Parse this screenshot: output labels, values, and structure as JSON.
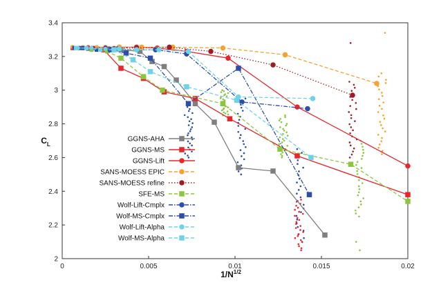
{
  "chart_data": {
    "type": "line",
    "xlabel": "1/N",
    "xlabel_sup": "1/2",
    "ylabel": "C",
    "ylabel_sub": "L",
    "xlim": [
      0,
      0.02
    ],
    "ylim": [
      2,
      3.4
    ],
    "xticks": [
      0,
      0.005,
      0.01,
      0.015,
      0.02
    ],
    "xtick_labels": [
      "0",
      "0.005",
      "0.01",
      "0.015",
      "0.02"
    ],
    "yticks": [
      2,
      2.2,
      2.4,
      2.6,
      2.8,
      3,
      3.2,
      3.4
    ],
    "ytick_labels": [
      "2",
      "2.2",
      "2.4",
      "2.6",
      "2.8",
      "3",
      "3.2",
      "3.4"
    ],
    "grid": false,
    "legend_position": "left",
    "series": [
      {
        "name": "GGNS-AHA",
        "color": "#7f7f7f",
        "marker": "square",
        "dash": "solid",
        "filled_marker": true,
        "x": [
          0.00097,
          0.0015,
          0.002,
          0.0026,
          0.0034,
          0.0045,
          0.0052,
          0.0059,
          0.0066,
          0.0077,
          0.0088,
          0.0102,
          0.0122,
          0.0152
        ],
        "y": [
          3.25,
          3.245,
          3.245,
          3.245,
          3.24,
          3.23,
          3.17,
          3.14,
          3.06,
          2.92,
          2.81,
          2.54,
          2.52,
          2.14
        ]
      },
      {
        "name": "GGNS-MS",
        "color": "#e8252a",
        "marker": "square",
        "dash": "solid",
        "filled_marker": true,
        "x": [
          0.0006,
          0.0012,
          0.0018,
          0.0024,
          0.0034,
          0.0047,
          0.0059,
          0.0077,
          0.0097,
          0.0136,
          0.02
        ],
        "y": [
          3.25,
          3.25,
          3.25,
          3.24,
          3.13,
          3.07,
          2.99,
          2.95,
          2.83,
          2.61,
          2.38
        ]
      },
      {
        "name": "GGNS-Lift",
        "color": "#e8252a",
        "marker": "circle",
        "dash": "solid",
        "filled_marker": true,
        "x": [
          0.0006,
          0.0015,
          0.0025,
          0.0033,
          0.0043,
          0.0055,
          0.0072,
          0.0096,
          0.0136,
          0.02
        ],
        "y": [
          3.255,
          3.255,
          3.255,
          3.255,
          3.255,
          3.25,
          3.23,
          3.19,
          2.9,
          2.55
        ]
      },
      {
        "name": "SANS-MOESS EPIC",
        "color": "#f7a12f",
        "marker": "circle",
        "dash": "dashed",
        "filled_marker": true,
        "x": [
          0.0006,
          0.0012,
          0.002,
          0.0033,
          0.0046,
          0.0064,
          0.0093,
          0.0129,
          0.0182
        ],
        "y": [
          3.255,
          3.255,
          3.255,
          3.255,
          3.255,
          3.255,
          3.25,
          3.21,
          3.04
        ]
      },
      {
        "name": "SANS-MOESS refine",
        "color": "#a01c24",
        "marker": "circle",
        "dash": "dotted",
        "filled_marker": true,
        "x": [
          0.001,
          0.0018,
          0.003,
          0.0043,
          0.0062,
          0.0086,
          0.0122,
          0.0168
        ],
        "y": [
          3.25,
          3.25,
          3.25,
          3.25,
          3.255,
          3.23,
          3.15,
          2.97
        ]
      },
      {
        "name": "SFE-MS",
        "color": "#8cc63f",
        "marker": "square",
        "dash": "dashed",
        "filled_marker": true,
        "x": [
          0.001,
          0.0017,
          0.0026,
          0.0034,
          0.0047,
          0.0058,
          0.0093,
          0.0126,
          0.0167,
          0.02
        ],
        "y": [
          3.25,
          3.24,
          3.23,
          3.19,
          3.08,
          3.0,
          2.92,
          2.65,
          2.56,
          2.34
        ]
      },
      {
        "name": "Wolf-Lift-Cmplx",
        "color": "#2c4da8",
        "marker": "circle",
        "dash": "dashdot",
        "filled_marker": true,
        "x": [
          0.001,
          0.0017,
          0.0025,
          0.0032,
          0.0043,
          0.0054,
          0.0072,
          0.0104,
          0.0142
        ],
        "y": [
          3.25,
          3.25,
          3.25,
          3.245,
          3.24,
          3.24,
          3.215,
          2.93,
          2.89
        ]
      },
      {
        "name": "Wolf-MS-Cmplx",
        "color": "#2c4da8",
        "marker": "square",
        "dash": "dashdot",
        "filled_marker": true,
        "x": [
          0.0007,
          0.0012,
          0.002,
          0.0028,
          0.0037,
          0.0051,
          0.0073,
          0.0102,
          0.0143
        ],
        "y": [
          3.25,
          3.25,
          3.24,
          3.24,
          3.22,
          3.19,
          2.92,
          3.13,
          2.38
        ]
      },
      {
        "name": "Wolf-Lift-Alpha",
        "color": "#6fd3e8",
        "marker": "circle",
        "dash": "dashed",
        "filled_marker": true,
        "x": [
          0.0009,
          0.0017,
          0.0025,
          0.0033,
          0.0043,
          0.0056,
          0.0073,
          0.0102,
          0.0145
        ],
        "y": [
          3.25,
          3.25,
          3.245,
          3.245,
          3.24,
          3.24,
          3.23,
          2.96,
          2.95
        ]
      },
      {
        "name": "Wolf-MS-Alpha",
        "color": "#6fd3e8",
        "marker": "square",
        "dash": "dashed",
        "filled_marker": true,
        "x": [
          0.0008,
          0.0014,
          0.0022,
          0.003,
          0.0041,
          0.0051,
          0.0072,
          0.0101,
          0.0144
        ],
        "y": [
          3.25,
          3.25,
          3.24,
          3.24,
          3.18,
          3.11,
          3.02,
          2.94,
          2.6
        ]
      }
    ],
    "scatter_clouds": [
      {
        "color": "#f7a12f",
        "x": 0.0185,
        "y_min": 2.62,
        "y_max": 3.1,
        "extra_y": [
          3.34
        ]
      },
      {
        "color": "#a01c24",
        "x": 0.0168,
        "y_min": 2.6,
        "y_max": 3.05,
        "extra_y": [
          3.28
        ]
      },
      {
        "color": "#8cc63f",
        "x": 0.0172,
        "y_min": 2.25,
        "y_max": 2.7,
        "extra_y": [
          2.05,
          2.1
        ]
      },
      {
        "color": "#8cc63f",
        "x": 0.0128,
        "y_min": 2.6,
        "y_max": 2.85,
        "extra_y": []
      },
      {
        "color": "#2c4da8",
        "x": 0.0138,
        "y_min": 2.1,
        "y_max": 2.65,
        "extra_y": []
      },
      {
        "color": "#2c4da8",
        "x": 0.0104,
        "y_min": 2.5,
        "y_max": 2.95,
        "extra_y": []
      },
      {
        "color": "#2c4da8",
        "x": 0.0073,
        "y_min": 2.6,
        "y_max": 2.9,
        "extra_y": []
      },
      {
        "color": "#e8252a",
        "x": 0.0137,
        "y_min": 2.05,
        "y_max": 2.35,
        "extra_y": []
      },
      {
        "color": "#8cc63f",
        "x": 0.0094,
        "y_min": 2.85,
        "y_max": 3.0,
        "extra_y": []
      }
    ]
  }
}
